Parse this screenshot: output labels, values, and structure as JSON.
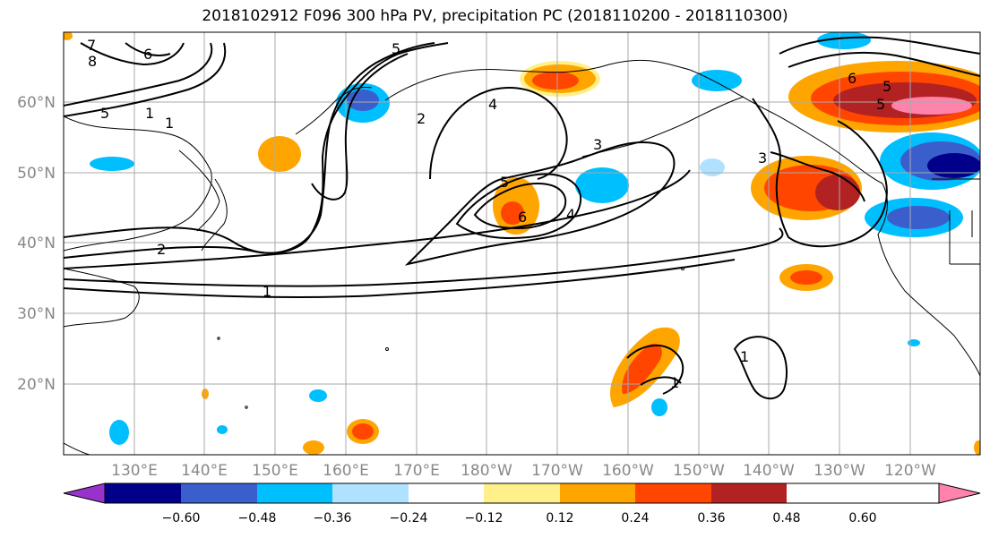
{
  "title": "2018102912 F096 300 hPa PV, precipitation PC (2018110200 - 2018110300)",
  "map": {
    "lat_labels": [
      "60°N",
      "50°N",
      "40°N",
      "30°N",
      "20°N"
    ],
    "lon_labels": [
      "130°E",
      "140°E",
      "150°E",
      "160°E",
      "170°E",
      "180°W",
      "170°W",
      "160°W",
      "150°W",
      "140°W",
      "130°W",
      "120°W"
    ],
    "contour_labels": [
      "7",
      "8",
      "6",
      "5",
      "1",
      "1",
      "2",
      "5",
      "4",
      "3",
      "5",
      "6",
      "4",
      "2",
      "1",
      "1",
      "1",
      "3",
      "6",
      "5",
      "5"
    ]
  },
  "colorbar": {
    "colors": [
      "#9932cc",
      "#00008b",
      "#3a5fcd",
      "#00bfff",
      "#b0e2ff",
      "#ffffff",
      "#fff08a",
      "#ffa500",
      "#ff4500",
      "#b22222",
      "#ff83ab"
    ],
    "tick_labels": [
      "−0.60",
      "−0.48",
      "−0.36",
      "−0.24",
      "−0.12",
      "0.12",
      "0.24",
      "0.36",
      "0.48",
      "0.60"
    ]
  }
}
